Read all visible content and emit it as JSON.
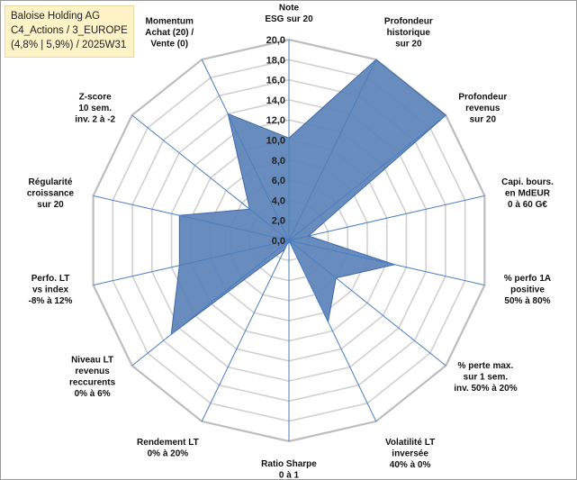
{
  "title_box": {
    "line1": "Baloise Holding AG",
    "line2": "C4_Actions / 3_EUROPE",
    "line3": "(4,8% | 5,9%) / 2025W31"
  },
  "chart_data": {
    "type": "radar",
    "rmin": 0,
    "rmax": 20,
    "ticks": [
      "0,0",
      "2,0",
      "4,0",
      "6,0",
      "8,0",
      "10,0",
      "12,0",
      "14,0",
      "16,0",
      "18,0",
      "20,0"
    ],
    "grid": true,
    "fill_color": "#5b82b8",
    "stroke_color": "#3f6aa8",
    "axis_color": "#4a7ebf",
    "grid_color": "#d0d0d0",
    "axes": [
      {
        "label": [
          "Note",
          "ESG sur 20"
        ],
        "value": 10.2
      },
      {
        "label": [
          "Profondeur",
          "historique",
          "sur 20"
        ],
        "value": 20
      },
      {
        "label": [
          "Profondeur",
          "revenus",
          "sur 20"
        ],
        "value": 20
      },
      {
        "label": [
          "Capi. bours.",
          "en MdEUR",
          "0 à 60 G€"
        ],
        "value": 2.0
      },
      {
        "label": [
          "% perfo 1A",
          "positive",
          "50% à 80%"
        ],
        "value": 10.8
      },
      {
        "label": [
          "% perte max.",
          "sur 1 sem.",
          "inv. 50% à 20%"
        ],
        "value": 6.0
      },
      {
        "label": [
          "Volatilité LT",
          "inversée",
          "40% à 0%"
        ],
        "value": 9.0
      },
      {
        "label": [
          "Ratio Sharpe",
          "0 à 1"
        ],
        "value": 0.0
      },
      {
        "label": [
          "Rendement LT",
          "0% à 20%"
        ],
        "value": 1.0
      },
      {
        "label": [
          "Niveau LT",
          "revenus",
          "reccurents",
          "0% à 6%"
        ],
        "value": 15.0
      },
      {
        "label": [
          "Perfo. LT",
          "vs index",
          "-8% à 12%"
        ],
        "value": 11.2
      },
      {
        "label": [
          "Régularité",
          "croissance",
          "sur 20"
        ],
        "value": 11.2
      },
      {
        "label": [
          "Z-score",
          "10 sem.",
          "inv. 2 à -2"
        ],
        "value": 5.0
      },
      {
        "label": [
          "Momentum",
          "Achat (20) /",
          "Vente (0)"
        ],
        "value": 14.0
      }
    ]
  }
}
